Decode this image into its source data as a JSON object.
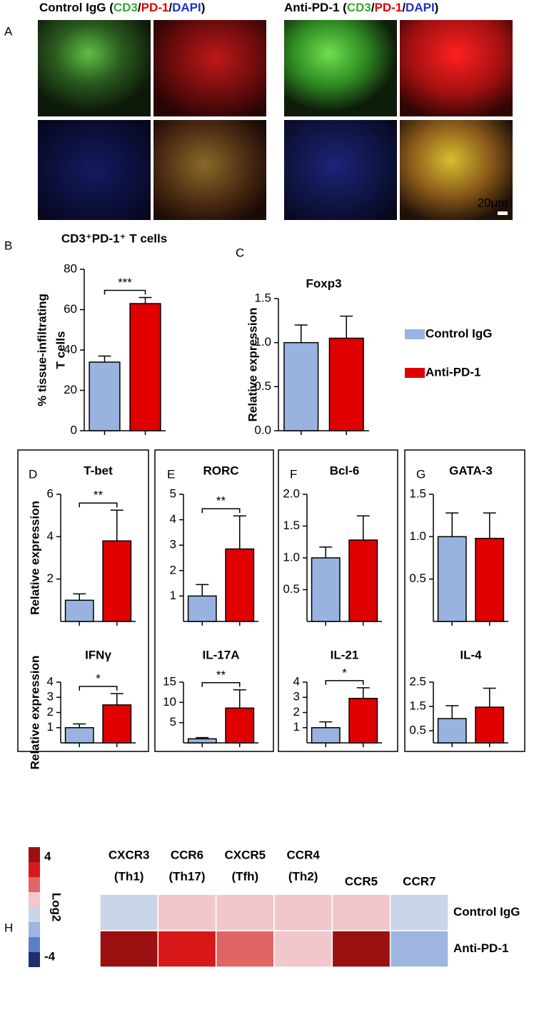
{
  "panel_a": {
    "label": "A",
    "groups": [
      {
        "title_parts": [
          {
            "text": "Control IgG (",
            "color": "#000000"
          },
          {
            "text": "CD3",
            "color": "#3aa935"
          },
          {
            "text": "/",
            "color": "#000000"
          },
          {
            "text": "PD-1",
            "color": "#e00000"
          },
          {
            "text": "/",
            "color": "#000000"
          },
          {
            "text": "DAPI",
            "color": "#1f2fd0"
          },
          {
            "text": ")",
            "color": "#000000"
          }
        ]
      },
      {
        "title_parts": [
          {
            "text": "Anti-PD-1 (",
            "color": "#000000"
          },
          {
            "text": "CD3",
            "color": "#3aa935"
          },
          {
            "text": "/",
            "color": "#000000"
          },
          {
            "text": "PD-1",
            "color": "#e00000"
          },
          {
            "text": "/",
            "color": "#000000"
          },
          {
            "text": "DAPI",
            "color": "#1f2fd0"
          },
          {
            "text": ")",
            "color": "#000000"
          }
        ]
      }
    ],
    "scale_bar": "20μm"
  },
  "legend": {
    "entries": [
      {
        "name": "Control IgG",
        "color": "#98b3e0"
      },
      {
        "name": "Anti-PD-1",
        "color": "#e00000"
      }
    ]
  },
  "chart_data": [
    {
      "type": "bar",
      "label": "B",
      "title": "CD3⁺PD-1⁺ T cells",
      "ylabel": [
        "% tissue-infiltrating",
        "T cells"
      ],
      "values": [
        34,
        63
      ],
      "errors": [
        3,
        3
      ],
      "ylim": [
        0,
        80
      ],
      "yticks": [
        0,
        20,
        40,
        60,
        80
      ],
      "significance": "***"
    },
    {
      "type": "bar",
      "label": "C",
      "title": "Foxp3",
      "ylabel": [
        "Relative expression"
      ],
      "values": [
        1.0,
        1.05
      ],
      "errors": [
        0.2,
        0.25
      ],
      "ylim": [
        0,
        1.5
      ],
      "yticks": [
        {
          "value": 0,
          "label": "0.0"
        },
        0.5,
        {
          "value": 1,
          "label": "1.0"
        },
        1.5
      ]
    },
    {
      "type": "bar",
      "label": "D",
      "title": "T-bet",
      "ylabel": [
        "Relative expression"
      ],
      "values": [
        1,
        3.8
      ],
      "errors": [
        0.3,
        1.45
      ],
      "ylim": [
        0,
        6
      ],
      "yticks": [
        2,
        4,
        6
      ],
      "significance": "**"
    },
    {
      "type": "bar",
      "title": "IFNγ",
      "ylabel": [
        "Relative expression"
      ],
      "values": [
        1,
        2.5
      ],
      "errors": [
        0.25,
        0.75
      ],
      "ylim": [
        0,
        4
      ],
      "yticks": [
        1,
        2,
        3,
        4
      ],
      "significance": "*"
    },
    {
      "type": "bar",
      "label": "E",
      "title": "RORC",
      "values": [
        1,
        2.85
      ],
      "errors": [
        0.45,
        1.3
      ],
      "ylim": [
        0,
        5
      ],
      "yticks": [
        1,
        2,
        3,
        4,
        5
      ],
      "significance": "**"
    },
    {
      "type": "bar",
      "title": "IL-17A",
      "values": [
        1,
        8.6
      ],
      "errors": [
        0.3,
        4.5
      ],
      "ylim": [
        0,
        15
      ],
      "yticks": [
        5,
        10,
        15
      ],
      "significance": "**"
    },
    {
      "type": "bar",
      "label": "F",
      "title": "Bcl-6",
      "values": [
        1,
        1.28
      ],
      "errors": [
        0.17,
        0.38
      ],
      "ylim": [
        0,
        2
      ],
      "yticks": [
        0.5,
        {
          "value": 1,
          "label": "1.0"
        },
        1.5,
        {
          "value": 2,
          "label": "2.0"
        }
      ]
    },
    {
      "type": "bar",
      "title": "IL-21",
      "values": [
        1,
        2.93
      ],
      "errors": [
        0.38,
        0.7
      ],
      "ylim": [
        0,
        4
      ],
      "yticks": [
        1,
        2,
        3,
        4
      ],
      "significance": "*"
    },
    {
      "type": "bar",
      "label": "G",
      "title": "GATA-3",
      "values": [
        1,
        0.98
      ],
      "errors": [
        0.28,
        0.3
      ],
      "ylim": [
        0,
        1.5
      ],
      "yticks": [
        0.5,
        {
          "value": 1,
          "label": "1.0"
        },
        1.5
      ]
    },
    {
      "type": "bar",
      "title": "IL-4",
      "values": [
        1,
        1.47
      ],
      "errors": [
        0.53,
        0.78
      ],
      "ylim": [
        0,
        2.5
      ],
      "yticks": [
        0.5,
        1.5,
        2.5
      ]
    },
    {
      "type": "heatmap",
      "label": "H",
      "columns": [
        [
          "CXCR3",
          "(Th1)"
        ],
        [
          "CCR6",
          "(Th17)"
        ],
        [
          "CXCR5",
          "(Tfh)"
        ],
        [
          "CCR4",
          "(Th2)"
        ],
        [
          "CCR5"
        ],
        [
          "CCR7"
        ]
      ],
      "rows": [
        "Control IgG",
        "Anti-PD-1"
      ],
      "values": [
        [
          -0.5,
          1,
          1,
          1,
          1,
          -0.5
        ],
        [
          4,
          3,
          2,
          1,
          4,
          -1.5
        ]
      ],
      "zlim": [
        -4,
        4
      ],
      "colorbar": {
        "ticks": [
          4,
          -4
        ],
        "label": "Log2",
        "colors": [
          "#9b1010",
          "#d81818",
          "#e06666",
          "#f2c7cb",
          "#c9d6e8",
          "#9db5e0",
          "#5b7fc6",
          "#1c2f6e"
        ]
      }
    }
  ]
}
